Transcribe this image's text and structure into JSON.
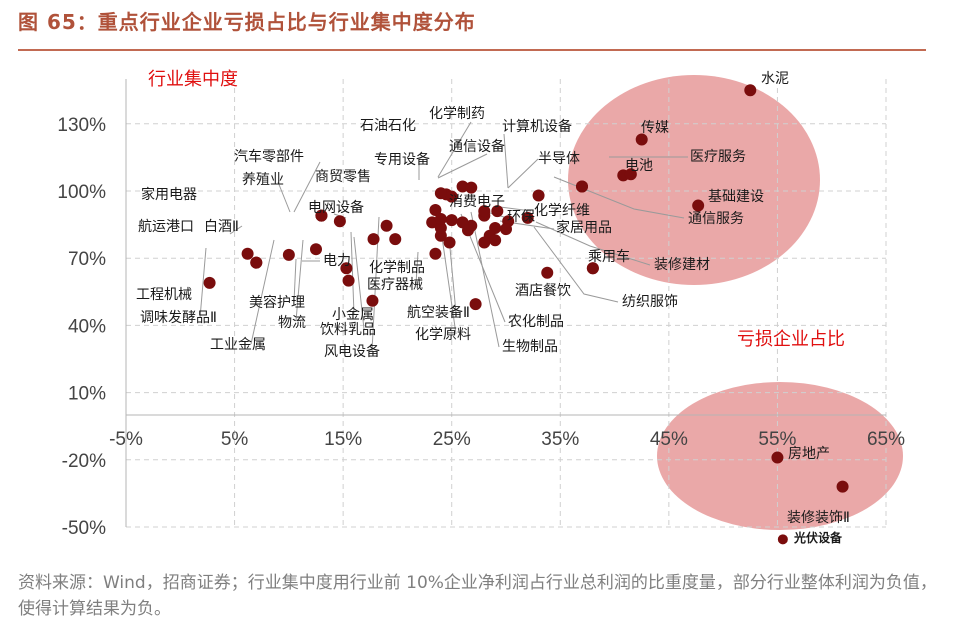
{
  "figure": {
    "title": "图 65：重点行业企业亏损占比与行业集中度分布",
    "footnote": "资料来源：Wind，招商证券；行业集中度用行业前 10%企业净利润占行业总利润的比重度量，部分行业整体利润为负值，使得计算结果为负。"
  },
  "colors": {
    "point": "#7a0d0d",
    "ellipse": "#d96060",
    "annotation": "#e01010",
    "title": "#b0523a",
    "leader": "#9a9a9a"
  },
  "chart_data": {
    "type": "scatter",
    "title": "",
    "xlabel": "亏损企业占比",
    "ylabel": "行业集中度",
    "xlim": [
      -0.05,
      0.65
    ],
    "ylim": [
      -0.5,
      1.5
    ],
    "x_ticks": [
      "-5%",
      "5%",
      "15%",
      "25%",
      "35%",
      "45%",
      "55%",
      "65%"
    ],
    "x_tick_values": [
      -0.05,
      0.05,
      0.15,
      0.25,
      0.35,
      0.45,
      0.55,
      0.65
    ],
    "y_ticks": [
      "-50%",
      "-20%",
      "10%",
      "40%",
      "70%",
      "100%",
      "130%"
    ],
    "y_tick_values": [
      -0.5,
      -0.2,
      0.1,
      0.4,
      0.7,
      1.0,
      1.3
    ],
    "grid": true,
    "annotations": [
      "行业集中度",
      "亏损企业占比"
    ],
    "points": [
      {
        "name": "水泥",
        "x": 0.525,
        "y": 1.45
      },
      {
        "name": "传媒",
        "x": 0.425,
        "y": 1.23
      },
      {
        "name": "电池",
        "x": 0.408,
        "y": 1.07
      },
      {
        "name": "医疗服务",
        "x": 0.415,
        "y": 1.075
      },
      {
        "name": "基础建设",
        "x": 0.477,
        "y": 0.935
      },
      {
        "name": "半导体",
        "x": 0.37,
        "y": 1.02
      },
      {
        "name": "通信服务",
        "x": 0.37,
        "y": 1.02
      },
      {
        "name": "计算机设备",
        "x": 0.33,
        "y": 0.98
      },
      {
        "name": "化学制药",
        "x": 0.26,
        "y": 1.02
      },
      {
        "name": "通信设备",
        "x": 0.268,
        "y": 1.015
      },
      {
        "name": "石油石化",
        "x": 0.245,
        "y": 0.985
      },
      {
        "name": "专用设备",
        "x": 0.25,
        "y": 0.975
      },
      {
        "name": "商贸零售",
        "x": 0.24,
        "y": 0.99
      },
      {
        "name": "汽车零部件",
        "x": 0.13,
        "y": 0.89
      },
      {
        "name": "养殖业",
        "x": 0.147,
        "y": 0.865
      },
      {
        "name": "家用电器",
        "x": 0.13,
        "y": 0.89
      },
      {
        "name": "电网设备",
        "x": 0.19,
        "y": 0.845
      },
      {
        "name": "消费电子",
        "x": 0.28,
        "y": 0.89
      },
      {
        "name": "环保",
        "x": 0.32,
        "y": 0.88
      },
      {
        "name": "化学纤维",
        "x": 0.302,
        "y": 0.865
      },
      {
        "name": "家居用品",
        "x": 0.29,
        "y": 0.835
      },
      {
        "name": "乘用车",
        "x": 0.38,
        "y": 0.655
      },
      {
        "name": "装修建材",
        "x": 0.38,
        "y": 0.655
      },
      {
        "name": "纺织服饰",
        "x": 0.285,
        "y": 0.8
      },
      {
        "name": "酒店餐饮",
        "x": 0.338,
        "y": 0.635
      },
      {
        "name": "航运港口",
        "x": 0.062,
        "y": 0.72
      },
      {
        "name": "白酒Ⅱ",
        "x": 0.07,
        "y": 0.68
      },
      {
        "name": "电力",
        "x": 0.153,
        "y": 0.655
      },
      {
        "name": "工程机械",
        "x": 0.027,
        "y": 0.59
      },
      {
        "name": "调味发酵品Ⅱ",
        "x": 0.07,
        "y": 0.68
      },
      {
        "name": "工业金属",
        "x": 0.1,
        "y": 0.715
      },
      {
        "name": "美容护理",
        "x": 0.125,
        "y": 0.74
      },
      {
        "name": "物流",
        "x": 0.155,
        "y": 0.6
      },
      {
        "name": "小金属",
        "x": 0.177,
        "y": 0.51
      },
      {
        "name": "饮料乳品",
        "x": 0.198,
        "y": 0.785
      },
      {
        "name": "风电设备",
        "x": 0.178,
        "y": 0.785
      },
      {
        "name": "化学制品",
        "x": 0.235,
        "y": 0.72
      },
      {
        "name": "医疗器械",
        "x": 0.24,
        "y": 0.8
      },
      {
        "name": "航空装备Ⅱ",
        "x": 0.272,
        "y": 0.495
      },
      {
        "name": "化学原料",
        "x": 0.28,
        "y": 0.77
      },
      {
        "name": "农化制品",
        "x": 0.29,
        "y": 0.78
      },
      {
        "name": "生物制品",
        "x": 0.3,
        "y": 0.83
      },
      {
        "name": "房地产",
        "x": 0.55,
        "y": -0.19
      },
      {
        "name": "装修装饰Ⅱ",
        "x": 0.61,
        "y": -0.32
      },
      {
        "name": "光伏设备",
        "x": 0.555,
        "y": -0.555
      },
      {
        "name": "",
        "x": 0.235,
        "y": 0.915
      },
      {
        "name": "",
        "x": 0.232,
        "y": 0.86
      },
      {
        "name": "",
        "x": 0.24,
        "y": 0.835
      },
      {
        "name": "",
        "x": 0.25,
        "y": 0.87
      },
      {
        "name": "",
        "x": 0.248,
        "y": 0.77
      },
      {
        "name": "",
        "x": 0.268,
        "y": 0.845
      },
      {
        "name": "",
        "x": 0.26,
        "y": 0.86
      },
      {
        "name": "",
        "x": 0.265,
        "y": 0.825
      },
      {
        "name": "",
        "x": 0.28,
        "y": 0.91
      },
      {
        "name": "",
        "x": 0.292,
        "y": 0.91
      },
      {
        "name": "",
        "x": 0.24,
        "y": 0.875
      }
    ],
    "highlight_groups": [
      {
        "annotation": "行业集中度",
        "members": [
          "水泥",
          "传媒",
          "电池",
          "医疗服务",
          "基础建设",
          "半导体"
        ]
      },
      {
        "annotation": "亏损企业占比",
        "members": [
          "房地产",
          "装修装饰Ⅱ"
        ]
      }
    ]
  }
}
